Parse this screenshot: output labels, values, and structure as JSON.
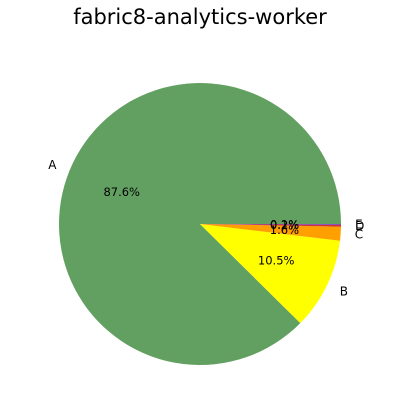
{
  "chart_data": {
    "type": "pie",
    "title": "fabric8-analytics-worker",
    "slices": [
      {
        "label": "A",
        "value": 87.6,
        "pct_label": "87.6%",
        "color": "#62a062"
      },
      {
        "label": "B",
        "value": 10.5,
        "pct_label": "10.5%",
        "color": "#ffff00"
      },
      {
        "label": "C",
        "value": 1.6,
        "pct_label": "1.6%",
        "color": "#ff9f00"
      },
      {
        "label": "D",
        "value": 0.2,
        "pct_label": "0.2%",
        "color": "#cc3333"
      },
      {
        "label": "E",
        "value": 0.1,
        "pct_label": "0.1%",
        "color": "#7a3fbf"
      }
    ]
  }
}
